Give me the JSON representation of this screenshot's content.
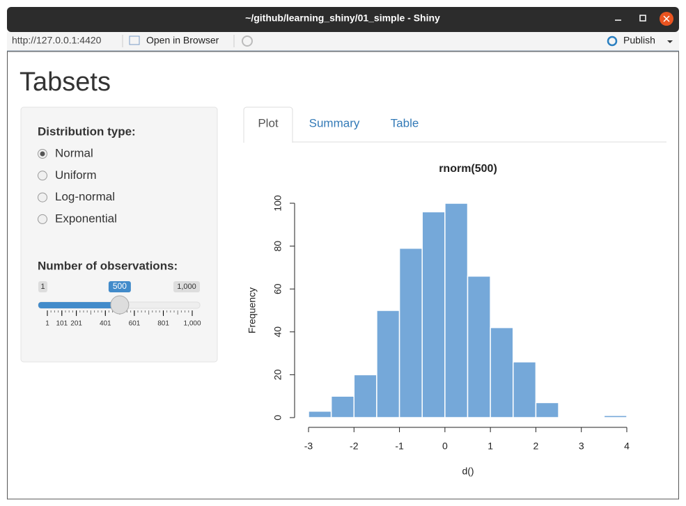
{
  "window": {
    "title": "~/github/learning_shiny/01_simple - Shiny"
  },
  "toolbar": {
    "url": "http://127.0.0.1:4420",
    "open": "Open in Browser",
    "publish": "Publish"
  },
  "page": {
    "heading": "Tabsets"
  },
  "sidebar": {
    "dist_label": "Distribution type:",
    "options": [
      "Normal",
      "Uniform",
      "Log-normal",
      "Exponential"
    ],
    "selected": 0,
    "slider_label": "Number of observations:",
    "slider": {
      "min": 1,
      "max": 1000,
      "value": 500,
      "min_label": "1",
      "max_label": "1,000",
      "value_label": "500",
      "ticks": [
        1,
        101,
        201,
        401,
        601,
        801,
        {
          "value": 1000,
          "label": "1,000"
        }
      ]
    }
  },
  "tabs": {
    "items": [
      "Plot",
      "Summary",
      "Table"
    ],
    "active": 0
  },
  "chart_data": {
    "type": "histogram",
    "title": "rnorm(500)",
    "x_label": "d()",
    "y_label": "Frequency",
    "bins": [
      -3,
      -2.5,
      -2,
      -1.5,
      -1,
      -0.5,
      0,
      0.5,
      1,
      1.5,
      2,
      2.5,
      3,
      3.5,
      4
    ],
    "values": [
      3,
      10,
      20,
      50,
      79,
      96,
      100,
      66,
      42,
      26,
      7,
      0,
      0,
      1
    ],
    "color": "#75a8d9",
    "xlim": [
      -3,
      4
    ],
    "xticks": [
      -3,
      -2,
      -1,
      0,
      1,
      2,
      3,
      4
    ],
    "ylim": [
      0,
      100
    ],
    "yticks": [
      0,
      20,
      40,
      60,
      80,
      100
    ]
  }
}
